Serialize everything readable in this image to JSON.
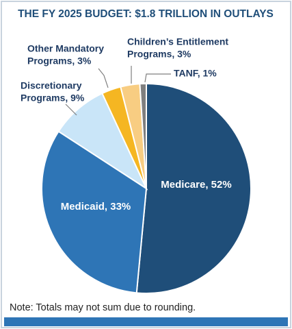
{
  "chart_data": {
    "type": "pie",
    "title": "THE FY 2025 BUDGET: $1.8 TRILLION IN OUTLAYS",
    "values": [
      52,
      33,
      9,
      3,
      3,
      1
    ],
    "value_labels": [
      [
        "Medicare, 52%"
      ],
      [
        "Medicaid, 33%"
      ],
      [
        "Discretionary",
        "Programs, 9%"
      ],
      [
        "Other Mandatory",
        "Programs, 3%"
      ],
      [
        "Children’s Entitlement",
        "Programs, 3%"
      ],
      [
        "TANF, 1%"
      ]
    ],
    "colors": [
      "#1f4e79",
      "#2e75b6",
      "#c9e5f8",
      "#f5b622",
      "#f8cd82",
      "#7f7f7f"
    ],
    "note": "Note: Totals may not sum due to rounding."
  }
}
